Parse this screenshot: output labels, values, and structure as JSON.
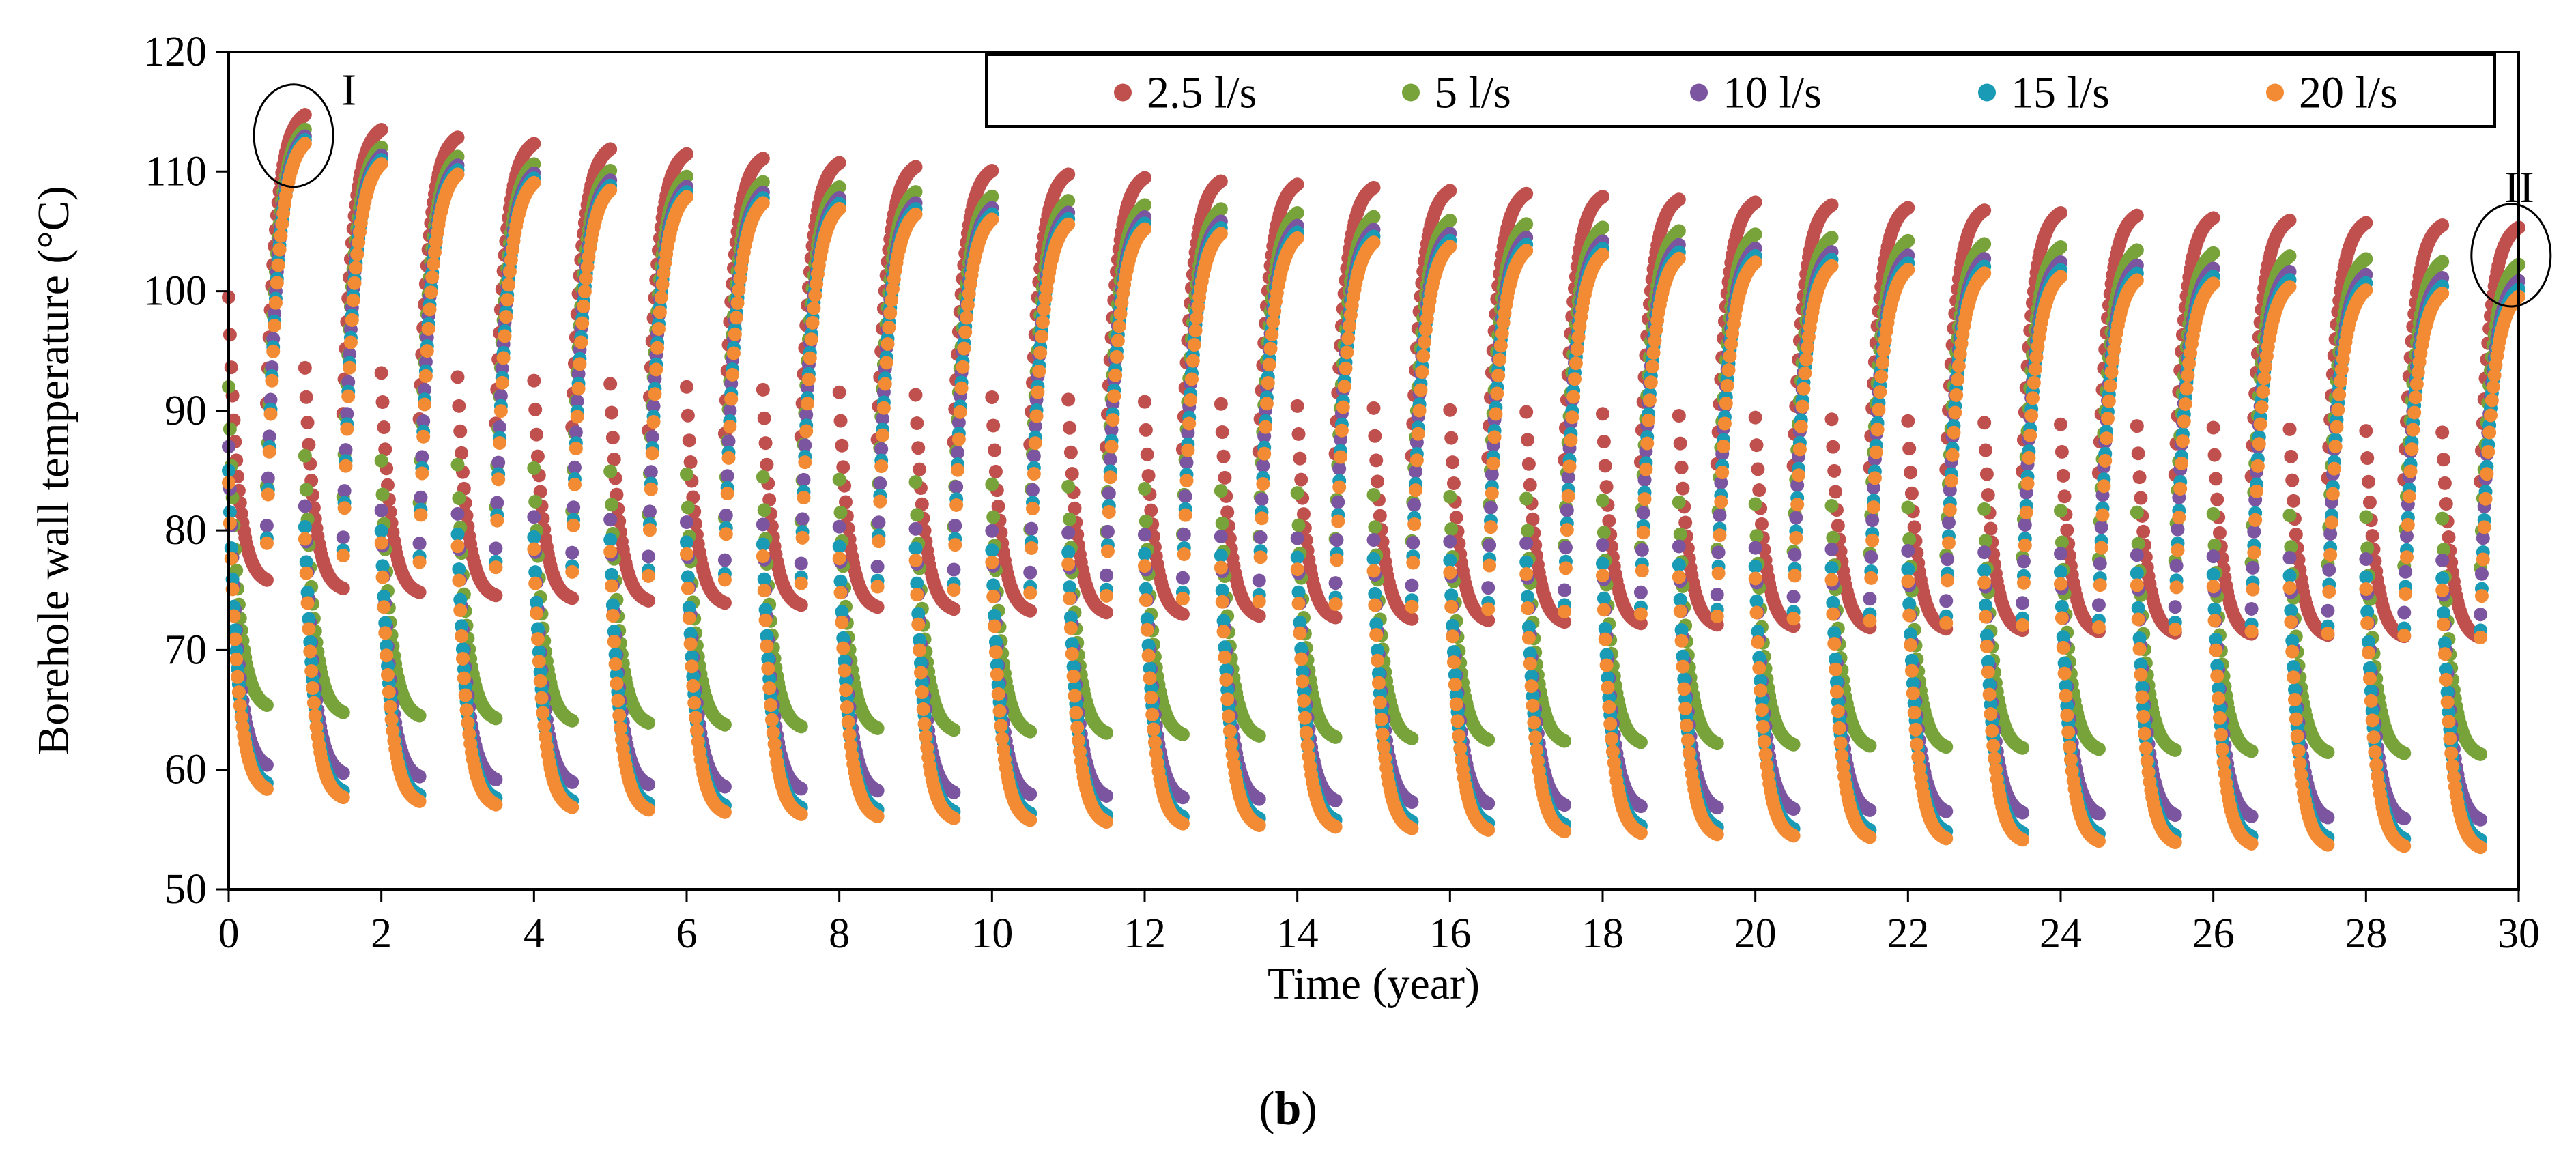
{
  "chart_data": {
    "type": "scatter",
    "title": "",
    "xlabel": "Time (year)",
    "ylabel": "Borehole wall temperature (°C)",
    "xlim": [
      0,
      30
    ],
    "ylim": [
      50,
      120
    ],
    "xticks": [
      0,
      2,
      4,
      6,
      8,
      10,
      12,
      14,
      16,
      18,
      20,
      22,
      24,
      26,
      28,
      30
    ],
    "yticks": [
      50,
      60,
      70,
      80,
      90,
      100,
      110,
      120
    ],
    "grid": false,
    "legend_position": "top-right",
    "cycle_period_years": 1,
    "injection_fraction": 0.5,
    "series": [
      {
        "name": "2.5 l/s",
        "color": "#C0504D",
        "peak_start": 115.3,
        "peak_end": 105.8,
        "low_start": 75.5,
        "low_end": 70.8,
        "inj_start_value": 99.5,
        "inj_shift_end": 88.2
      },
      {
        "name": "5 l/s",
        "color": "#77A33A",
        "peak_start": 114.2,
        "peak_end": 102.8,
        "low_start": 65.0,
        "low_end": 61.0,
        "inj_start_value": 92.0,
        "inj_shift_end": 81.0
      },
      {
        "name": "10 l/s",
        "color": "#7B559F",
        "peak_start": 113.7,
        "peak_end": 101.5,
        "low_start": 60.0,
        "low_end": 55.5,
        "inj_start_value": 87.0,
        "inj_shift_end": 77.5
      },
      {
        "name": "15 l/s",
        "color": "#1A9BB5",
        "peak_start": 113.4,
        "peak_end": 100.8,
        "low_start": 58.5,
        "low_end": 53.8,
        "inj_start_value": 85.0,
        "inj_shift_end": 76.0
      },
      {
        "name": "20 l/s",
        "color": "#F38B35",
        "peak_start": 113.1,
        "peak_end": 100.2,
        "low_start": 58.0,
        "low_end": 53.2,
        "inj_start_value": 84.0,
        "inj_shift_end": 75.0
      }
    ],
    "annotations": [
      {
        "label": "I",
        "x": 0.85,
        "y": 113
      },
      {
        "label": "II",
        "x": 29.9,
        "y": 103
      }
    ]
  },
  "caption": {
    "prefix": "(",
    "letter": "b",
    "suffix": ")"
  }
}
